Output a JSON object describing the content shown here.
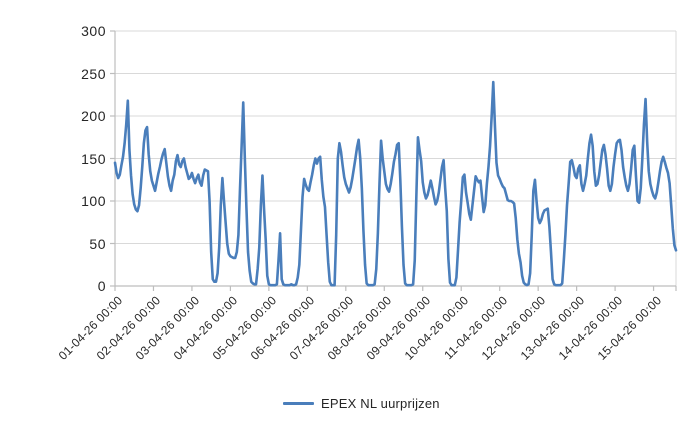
{
  "colors": {
    "line": "#4a7ebb",
    "gridline": "#d9d9d9",
    "axis": "#bdbdbd",
    "text": "#262626",
    "background": "#ffffff"
  },
  "chart_data": {
    "type": "line",
    "title": "",
    "xlabel": "",
    "ylabel": "",
    "ylim": [
      0,
      300
    ],
    "y_ticks": [
      0,
      50,
      100,
      150,
      200,
      250,
      300
    ],
    "grid": "horizontal",
    "legend_position": "bottom-center",
    "x_unit": "hourly",
    "x_tick_interval_hours": 24,
    "x_tick_labels": [
      "01-04-26 00:00",
      "02-04-26 00:00",
      "03-04-26 00:00",
      "04-04-26 00:00",
      "05-04-26 00:00",
      "06-04-26 00:00",
      "07-04-26 00:00",
      "08-04-26 00:00",
      "09-04-26 00:00",
      "10-04-26 00:00",
      "11-04-26 00:00",
      "12-04-26 00:00",
      "13-04-26 00:00",
      "14-04-26 00:00",
      "15-04-26 00:00"
    ],
    "series": [
      {
        "name": "EPEX NL uurprijzen",
        "color": "#4a7ebb",
        "values": [
          145,
          133,
          127,
          131,
          142,
          152,
          168,
          190,
          218,
          160,
          130,
          108,
          96,
          90,
          88,
          95,
          115,
          140,
          168,
          183,
          187,
          155,
          135,
          124,
          118,
          112,
          122,
          132,
          140,
          149,
          156,
          161,
          145,
          129,
          118,
          112,
          124,
          131,
          147,
          154,
          143,
          140,
          147,
          150,
          140,
          133,
          126,
          128,
          133,
          126,
          121,
          127,
          131,
          122,
          118,
          130,
          137,
          136,
          135,
          100,
          40,
          8,
          5,
          5,
          15,
          45,
          95,
          127,
          100,
          75,
          50,
          38,
          35,
          34,
          33,
          33,
          40,
          60,
          115,
          165,
          216,
          150,
          92,
          40,
          18,
          5,
          3,
          2,
          2,
          20,
          45,
          95,
          130,
          90,
          55,
          12,
          2,
          1,
          1,
          1,
          1,
          2,
          30,
          62,
          8,
          2,
          1,
          1,
          1,
          1,
          2,
          1,
          1,
          2,
          10,
          25,
          65,
          105,
          126,
          119,
          114,
          112,
          122,
          131,
          142,
          150,
          144,
          150,
          152,
          125,
          105,
          93,
          60,
          28,
          5,
          1,
          1,
          1,
          60,
          150,
          168,
          158,
          142,
          128,
          120,
          115,
          110,
          116,
          126,
          138,
          150,
          163,
          172,
          150,
          115,
          65,
          25,
          3,
          1,
          1,
          1,
          1,
          2,
          20,
          62,
          120,
          171,
          150,
          135,
          120,
          114,
          111,
          120,
          132,
          146,
          155,
          166,
          168,
          125,
          70,
          25,
          3,
          1,
          1,
          1,
          1,
          2,
          30,
          105,
          175,
          160,
          147,
          122,
          110,
          103,
          107,
          115,
          124,
          115,
          105,
          96,
          100,
          110,
          125,
          140,
          148,
          115,
          88,
          32,
          4,
          1,
          1,
          1,
          10,
          42,
          75,
          100,
          128,
          131,
          110,
          98,
          85,
          78,
          95,
          112,
          129,
          125,
          122,
          124,
          105,
          87,
          95,
          120,
          140,
          165,
          200,
          240,
          190,
          145,
          130,
          126,
          121,
          117,
          115,
          108,
          101,
          100,
          100,
          99,
          97,
          80,
          55,
          38,
          28,
          12,
          4,
          2,
          1,
          2,
          15,
          60,
          112,
          125,
          100,
          80,
          74,
          78,
          85,
          89,
          90,
          91,
          70,
          40,
          8,
          2,
          1,
          1,
          1,
          1,
          3,
          30,
          60,
          95,
          120,
          146,
          148,
          140,
          130,
          127,
          138,
          142,
          120,
          112,
          120,
          130,
          150,
          168,
          178,
          165,
          135,
          118,
          120,
          130,
          145,
          160,
          166,
          155,
          138,
          118,
          112,
          120,
          140,
          155,
          168,
          171,
          172,
          160,
          140,
          128,
          118,
          112,
          120,
          138,
          160,
          165,
          130,
          100,
          98,
          115,
          150,
          190,
          220,
          170,
          135,
          120,
          112,
          106,
          103,
          110,
          122,
          135,
          146,
          152,
          146,
          139,
          133,
          121,
          95,
          68,
          48,
          42
        ]
      }
    ]
  }
}
